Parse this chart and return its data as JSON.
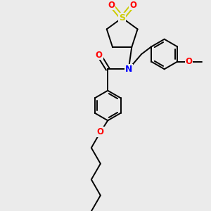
{
  "bg_color": "#ebebeb",
  "bond_color": "#000000",
  "atom_colors": {
    "S": "#cccc00",
    "O": "#ff0000",
    "N": "#0000ff",
    "C": "#000000"
  },
  "figsize": [
    3.0,
    3.0
  ],
  "dpi": 100
}
